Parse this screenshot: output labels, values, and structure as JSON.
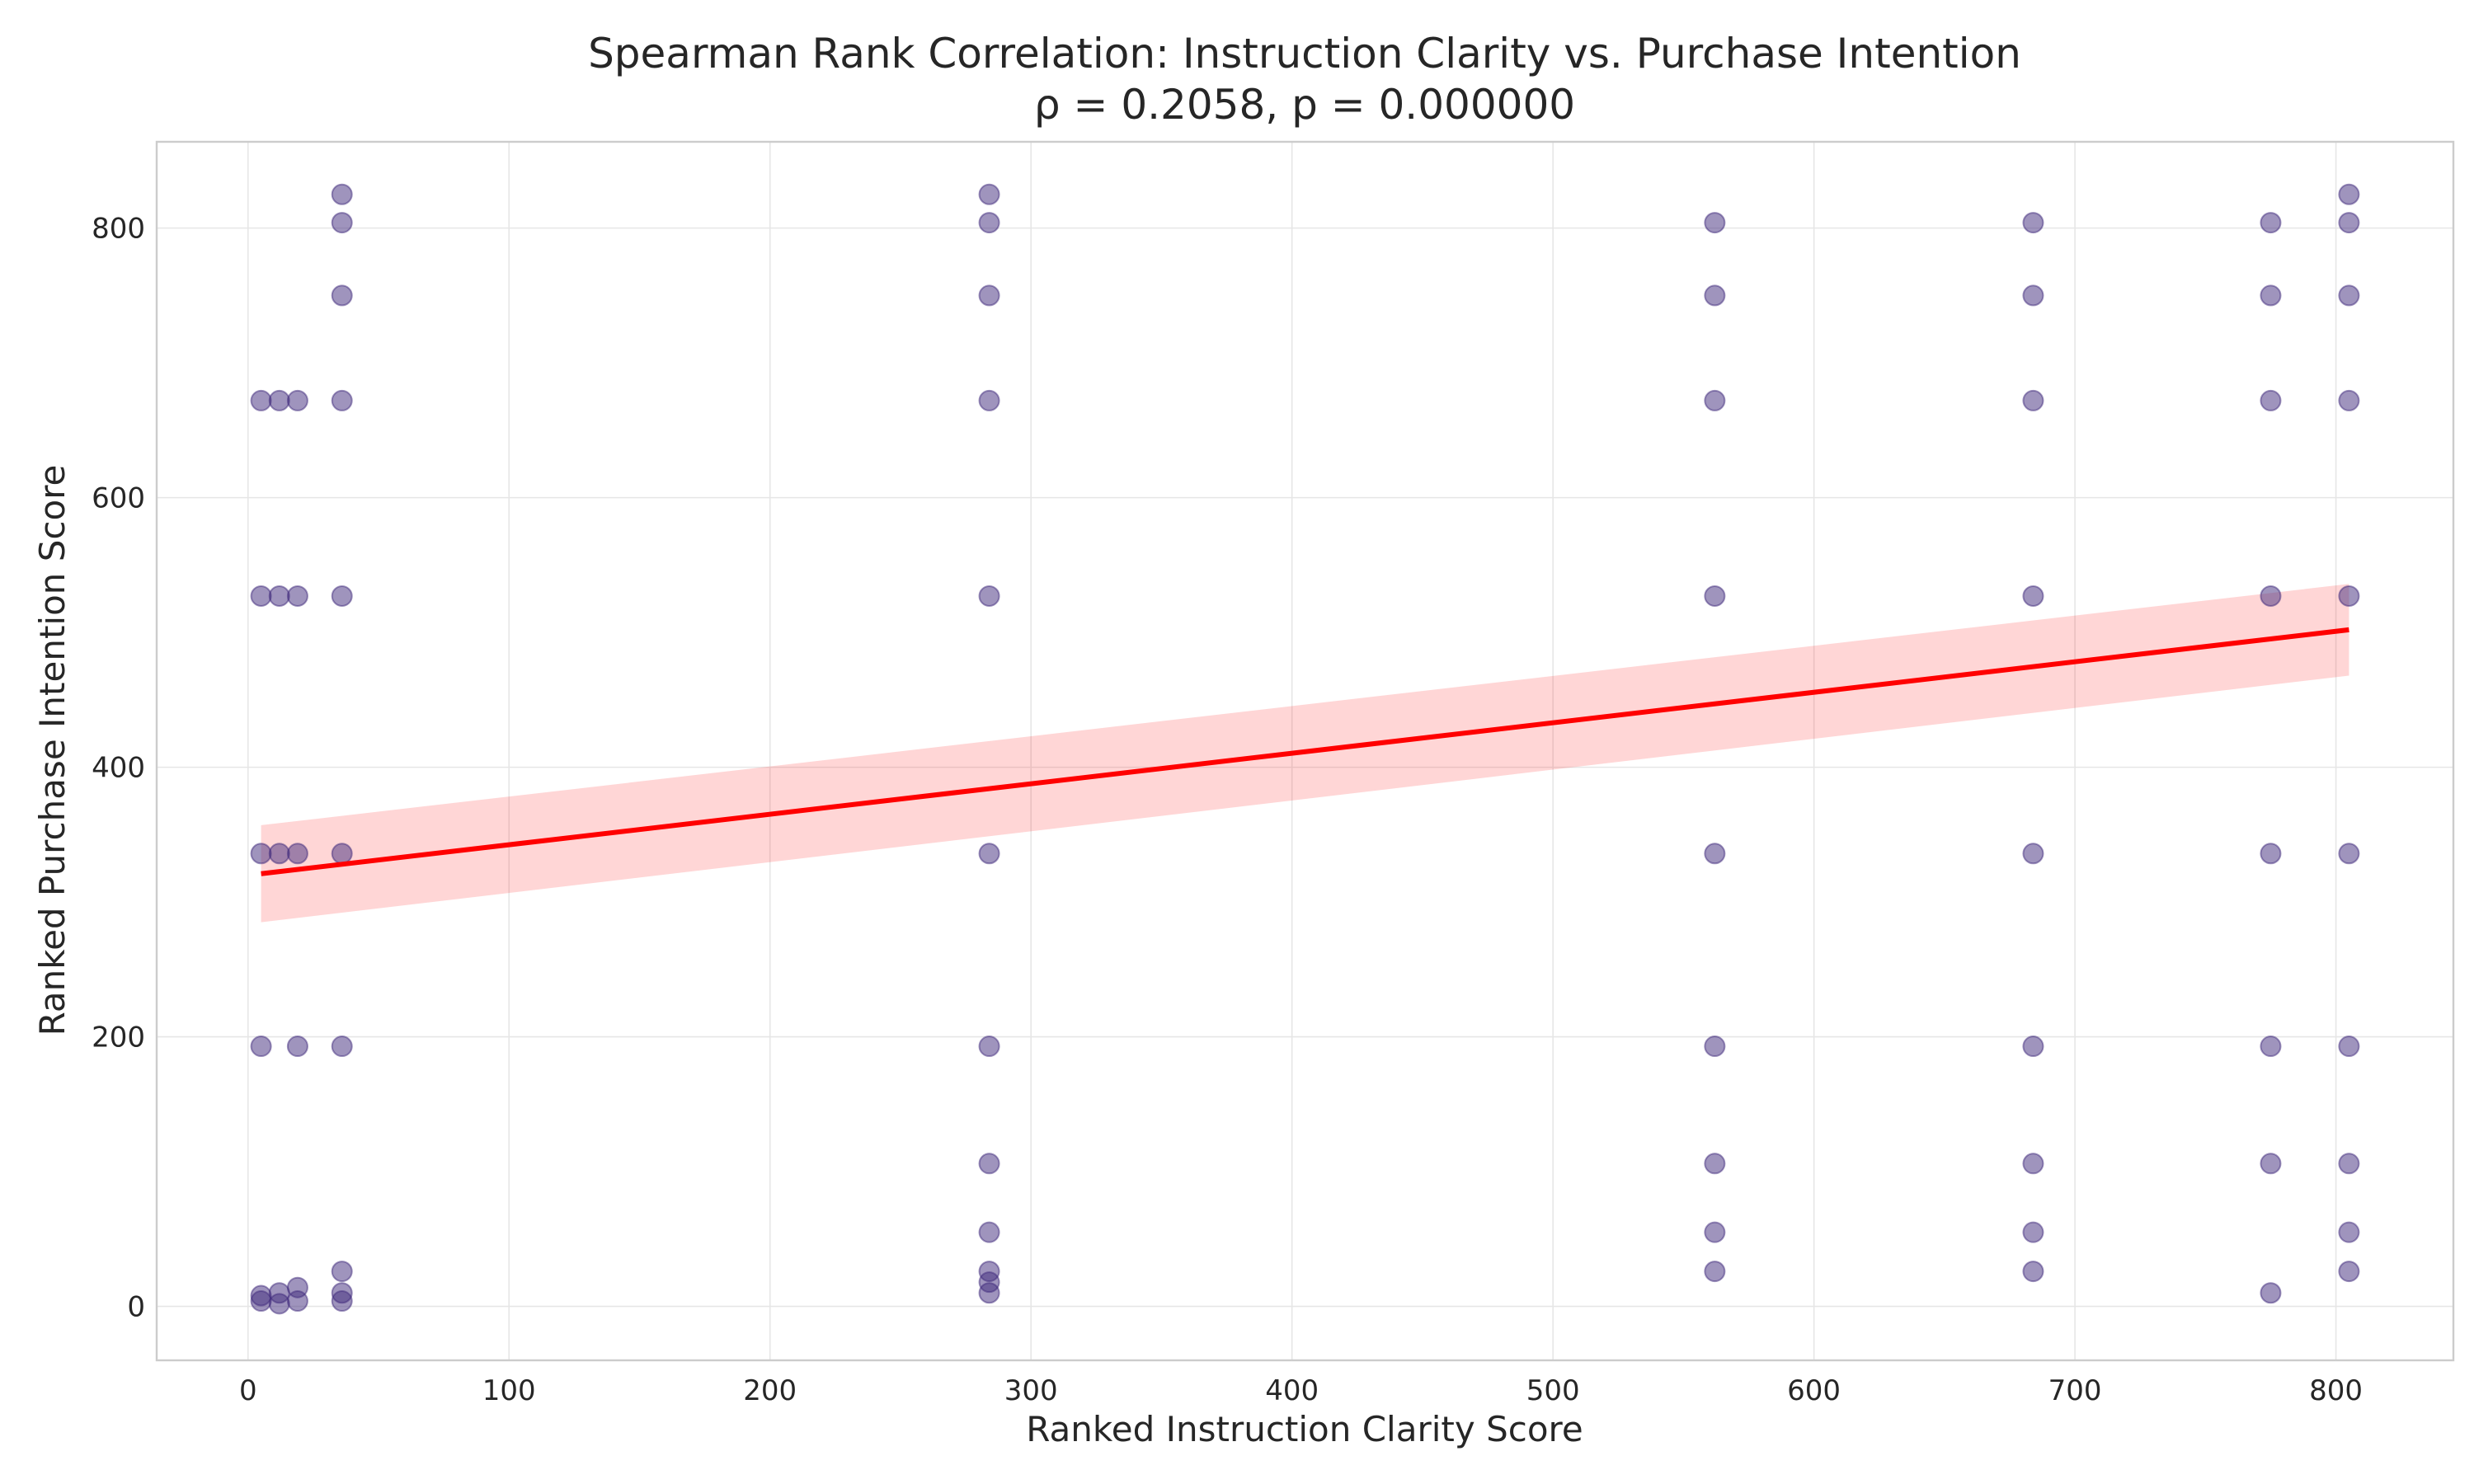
{
  "chart_data": {
    "type": "scatter",
    "title": "Spearman Rank Correlation: Instruction Clarity vs. Purchase Intention",
    "subtitle": "ρ = 0.2058, p = 0.000000",
    "xlabel": "Ranked Instruction Clarity Score",
    "ylabel": "Ranked Purchase Intention Score",
    "xlim": [
      -35,
      845
    ],
    "ylim": [
      -40,
      864
    ],
    "xticks": [
      0,
      100,
      200,
      300,
      400,
      500,
      600,
      700,
      800
    ],
    "yticks": [
      0,
      200,
      400,
      600,
      800
    ],
    "grid": true,
    "points": [
      [
        5,
        4
      ],
      [
        5,
        8
      ],
      [
        5,
        193
      ],
      [
        5,
        336
      ],
      [
        5,
        527
      ],
      [
        5,
        672
      ],
      [
        12,
        2
      ],
      [
        12,
        10
      ],
      [
        12,
        336
      ],
      [
        12,
        527
      ],
      [
        12,
        672
      ],
      [
        19,
        4
      ],
      [
        19,
        14
      ],
      [
        19,
        193
      ],
      [
        19,
        336
      ],
      [
        19,
        527
      ],
      [
        19,
        672
      ],
      [
        36,
        4
      ],
      [
        36,
        10
      ],
      [
        36,
        26
      ],
      [
        36,
        193
      ],
      [
        36,
        336
      ],
      [
        36,
        527
      ],
      [
        36,
        672
      ],
      [
        36,
        750
      ],
      [
        36,
        804
      ],
      [
        36,
        825
      ],
      [
        284,
        10
      ],
      [
        284,
        18
      ],
      [
        284,
        26
      ],
      [
        284,
        55
      ],
      [
        284,
        106
      ],
      [
        284,
        193
      ],
      [
        284,
        336
      ],
      [
        284,
        527
      ],
      [
        284,
        672
      ],
      [
        284,
        750
      ],
      [
        284,
        804
      ],
      [
        284,
        825
      ],
      [
        562,
        26
      ],
      [
        562,
        55
      ],
      [
        562,
        106
      ],
      [
        562,
        193
      ],
      [
        562,
        336
      ],
      [
        562,
        527
      ],
      [
        562,
        672
      ],
      [
        562,
        750
      ],
      [
        562,
        804
      ],
      [
        684,
        26
      ],
      [
        684,
        55
      ],
      [
        684,
        106
      ],
      [
        684,
        193
      ],
      [
        684,
        336
      ],
      [
        684,
        527
      ],
      [
        684,
        672
      ],
      [
        684,
        750
      ],
      [
        684,
        804
      ],
      [
        775,
        10
      ],
      [
        775,
        106
      ],
      [
        775,
        193
      ],
      [
        775,
        336
      ],
      [
        775,
        527
      ],
      [
        775,
        672
      ],
      [
        775,
        750
      ],
      [
        775,
        804
      ],
      [
        805,
        26
      ],
      [
        805,
        55
      ],
      [
        805,
        106
      ],
      [
        805,
        193
      ],
      [
        805,
        336
      ],
      [
        805,
        527
      ],
      [
        805,
        672
      ],
      [
        805,
        750
      ],
      [
        805,
        804
      ],
      [
        805,
        825
      ]
    ],
    "regression": {
      "x": [
        5,
        805
      ],
      "y": [
        321,
        502
      ],
      "ci_lower": [
        285,
        468
      ],
      "ci_upper": [
        357,
        536
      ]
    },
    "colors": {
      "points": "#3f2a7c",
      "fit_line": "#ff0000"
    }
  }
}
